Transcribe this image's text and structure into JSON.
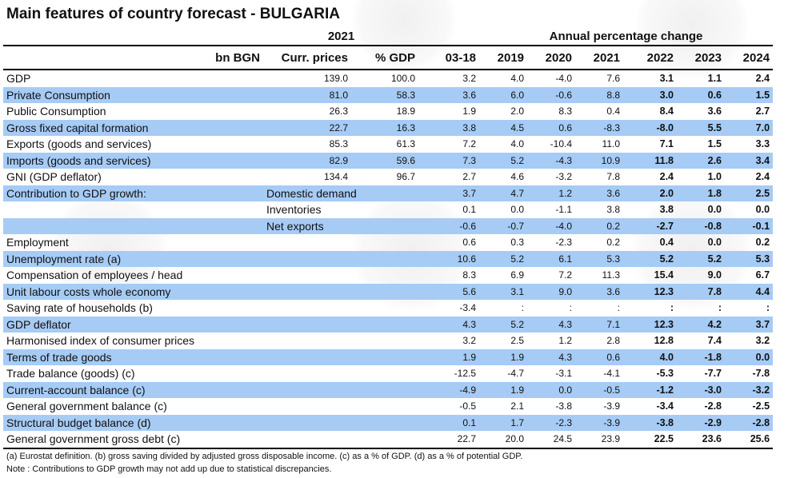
{
  "title": "Main features of country forecast - BULGARIA",
  "header": {
    "year": "2021",
    "annual_label": "Annual percentage change",
    "columns": [
      "bn BGN",
      "Curr. prices",
      "% GDP",
      "03-18",
      "2019",
      "2020",
      "2021",
      "2022",
      "2023",
      "2024"
    ]
  },
  "rows": [
    {
      "label": "GDP",
      "sub": "",
      "curr": "139.0",
      "pct": "100.0",
      "values": [
        "3.2",
        "4.0",
        "-4.0",
        "7.6",
        "3.1",
        "1.1",
        "2.4"
      ]
    },
    {
      "label": "Private Consumption",
      "sub": "",
      "curr": "81.0",
      "pct": "58.3",
      "values": [
        "3.6",
        "6.0",
        "-0.6",
        "8.8",
        "3.0",
        "0.6",
        "1.5"
      ]
    },
    {
      "label": "Public Consumption",
      "sub": "",
      "curr": "26.3",
      "pct": "18.9",
      "values": [
        "1.9",
        "2.0",
        "8.3",
        "0.4",
        "8.4",
        "3.6",
        "2.7"
      ]
    },
    {
      "label": "Gross fixed capital formation",
      "sub": "",
      "curr": "22.7",
      "pct": "16.3",
      "values": [
        "3.8",
        "4.5",
        "0.6",
        "-8.3",
        "-8.0",
        "5.5",
        "7.0"
      ]
    },
    {
      "label": "Exports (goods and services)",
      "sub": "",
      "curr": "85.3",
      "pct": "61.3",
      "values": [
        "7.2",
        "4.0",
        "-10.4",
        "11.0",
        "7.1",
        "1.5",
        "3.3"
      ]
    },
    {
      "label": "Imports (goods and services)",
      "sub": "",
      "curr": "82.9",
      "pct": "59.6",
      "values": [
        "7.3",
        "5.2",
        "-4.3",
        "10.9",
        "11.8",
        "2.6",
        "3.4"
      ]
    },
    {
      "label": "GNI (GDP deflator)",
      "sub": "",
      "curr": "134.4",
      "pct": "96.7",
      "values": [
        "2.7",
        "4.6",
        "-3.2",
        "7.8",
        "2.4",
        "1.0",
        "2.4"
      ]
    },
    {
      "label": "Contribution to GDP growth:",
      "sub": "Domestic demand",
      "curr": "",
      "pct": "",
      "values": [
        "3.7",
        "4.7",
        "1.2",
        "3.6",
        "2.0",
        "1.8",
        "2.5"
      ]
    },
    {
      "label": "",
      "sub": "Inventories",
      "curr": "",
      "pct": "",
      "values": [
        "0.1",
        "0.0",
        "-1.1",
        "3.8",
        "3.8",
        "0.0",
        "0.0"
      ]
    },
    {
      "label": "",
      "sub": "Net exports",
      "curr": "",
      "pct": "",
      "values": [
        "-0.6",
        "-0.7",
        "-4.0",
        "0.2",
        "-2.7",
        "-0.8",
        "-0.1"
      ]
    },
    {
      "label": "Employment",
      "sub": "",
      "curr": "",
      "pct": "",
      "values": [
        "0.6",
        "0.3",
        "-2.3",
        "0.2",
        "0.4",
        "0.0",
        "0.2"
      ]
    },
    {
      "label": "Unemployment rate (a)",
      "sub": "",
      "curr": "",
      "pct": "",
      "values": [
        "10.6",
        "5.2",
        "6.1",
        "5.3",
        "5.2",
        "5.2",
        "5.3"
      ]
    },
    {
      "label": "Compensation of employees / head",
      "sub": "",
      "curr": "",
      "pct": "",
      "values": [
        "8.3",
        "6.9",
        "7.2",
        "11.3",
        "15.4",
        "9.0",
        "6.7"
      ]
    },
    {
      "label": "Unit labour costs whole economy",
      "sub": "",
      "curr": "",
      "pct": "",
      "values": [
        "5.6",
        "3.1",
        "9.0",
        "3.6",
        "12.3",
        "7.8",
        "4.4"
      ]
    },
    {
      "label": "Saving rate of households (b)",
      "sub": "",
      "curr": "",
      "pct": "",
      "values": [
        "-3.4",
        ":",
        ":",
        ":",
        ":",
        ":",
        ":"
      ]
    },
    {
      "label": "GDP deflator",
      "sub": "",
      "curr": "",
      "pct": "",
      "values": [
        "4.3",
        "5.2",
        "4.3",
        "7.1",
        "12.3",
        "4.2",
        "3.7"
      ]
    },
    {
      "label": "Harmonised index of consumer prices",
      "sub": "",
      "curr": "",
      "pct": "",
      "values": [
        "3.2",
        "2.5",
        "1.2",
        "2.8",
        "12.8",
        "7.4",
        "3.2"
      ]
    },
    {
      "label": "Terms of trade goods",
      "sub": "",
      "curr": "",
      "pct": "",
      "values": [
        "1.9",
        "1.9",
        "4.3",
        "0.6",
        "4.0",
        "-1.8",
        "0.0"
      ]
    },
    {
      "label": "Trade balance (goods) (c)",
      "sub": "",
      "curr": "",
      "pct": "",
      "values": [
        "-12.5",
        "-4.7",
        "-3.1",
        "-4.1",
        "-5.3",
        "-7.7",
        "-7.8"
      ]
    },
    {
      "label": "Current-account balance (c)",
      "sub": "",
      "curr": "",
      "pct": "",
      "values": [
        "-4.9",
        "1.9",
        "0.0",
        "-0.5",
        "-1.2",
        "-3.0",
        "-3.2"
      ]
    },
    {
      "label": "General government balance (c)",
      "sub": "",
      "curr": "",
      "pct": "",
      "values": [
        "-0.5",
        "2.1",
        "-3.8",
        "-3.9",
        "-3.4",
        "-2.8",
        "-2.5"
      ]
    },
    {
      "label": "Structural budget balance (d)",
      "sub": "",
      "curr": "",
      "pct": "",
      "values": [
        "0.1",
        "1.7",
        "-2.3",
        "-3.9",
        "-3.8",
        "-2.9",
        "-2.8"
      ]
    },
    {
      "label": "General government gross debt (c)",
      "sub": "",
      "curr": "",
      "pct": "",
      "values": [
        "22.7",
        "20.0",
        "24.5",
        "23.9",
        "22.5",
        "23.6",
        "25.6"
      ]
    }
  ],
  "footnotes": [
    "(a) Eurostat definition.  (b) gross saving divided by adjusted gross disposable income.  (c) as a % of GDP. (d) as a % of potential GDP.",
    "Note : Contributions to GDP growth may not add up due to statistical discrepancies."
  ],
  "colors": {
    "shade": "#a6cbf5"
  }
}
